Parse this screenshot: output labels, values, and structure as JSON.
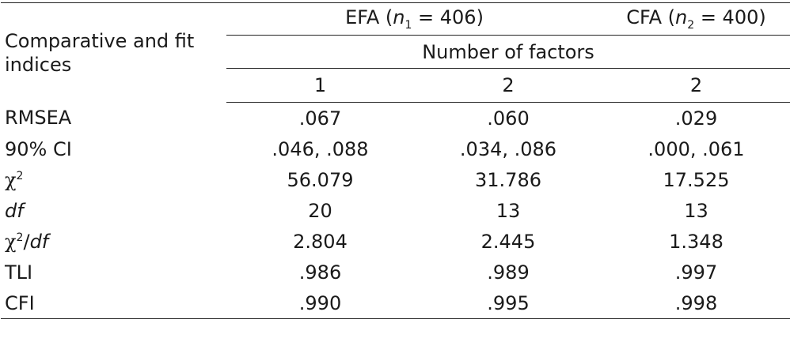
{
  "table": {
    "stub_header": "Comparative and fit indices",
    "groups": {
      "efa": {
        "prefix": "EFA (",
        "n_var": "n",
        "n_sub": "1",
        "n_rest": " = 406)"
      },
      "cfa": {
        "prefix": "CFA (",
        "n_var": "n",
        "n_sub": "2",
        "n_rest": " = 400)"
      }
    },
    "spanner": "Number of factors",
    "factor_counts": [
      "1",
      "2",
      "2"
    ],
    "rows": {
      "rmsea": {
        "label": "RMSEA",
        "values": [
          ".067",
          ".060",
          ".029"
        ]
      },
      "ci": {
        "label": "90% CI",
        "values": [
          ".046, .088",
          ".034, .086",
          ".000, .061"
        ]
      },
      "chi2": {
        "symbol": "χ",
        "sup": "2",
        "values": [
          "56.079",
          "31.786",
          "17.525"
        ]
      },
      "df": {
        "label": "df",
        "values": [
          "20",
          "13",
          "13"
        ]
      },
      "chi2df": {
        "symbol": "χ",
        "sup": "2",
        "slash": "/",
        "df": "df",
        "values": [
          "2.804",
          "2.445",
          "1.348"
        ]
      },
      "tli": {
        "label": "TLI",
        "values": [
          ".986",
          ".989",
          ".997"
        ]
      },
      "cfi": {
        "label": "CFI",
        "values": [
          ".990",
          ".995",
          ".998"
        ]
      }
    }
  }
}
